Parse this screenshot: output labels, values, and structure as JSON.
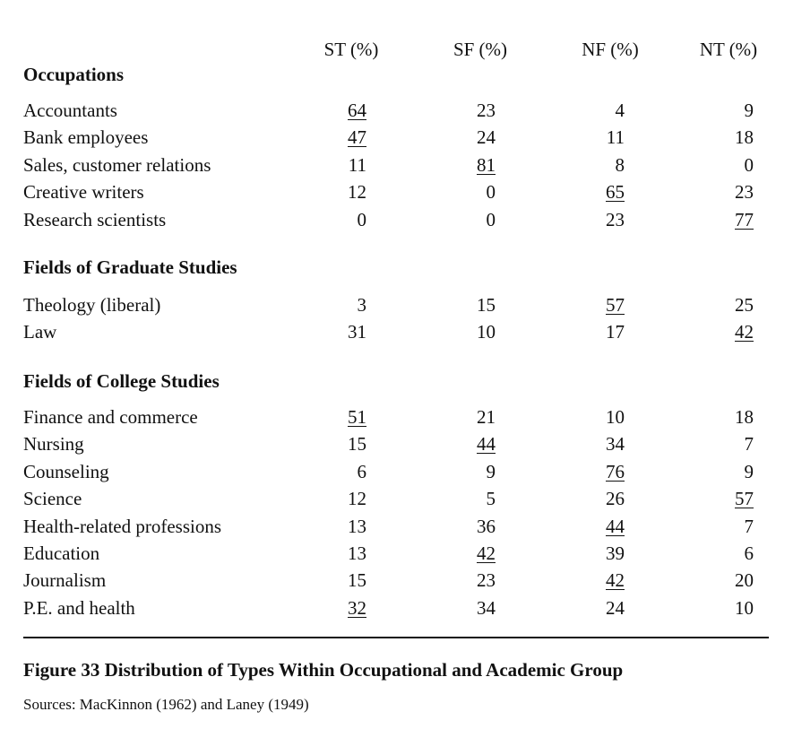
{
  "columns": [
    "ST (%)",
    "SF (%)",
    "NF (%)",
    "NT (%)"
  ],
  "sections": [
    {
      "title": "Occupations",
      "rows": [
        {
          "label": "Accountants",
          "values": [
            "64",
            "23",
            "4",
            "9"
          ],
          "underlined": 0
        },
        {
          "label": "Bank employees",
          "values": [
            "47",
            "24",
            "11",
            "18"
          ],
          "underlined": 0
        },
        {
          "label": "Sales, customer relations",
          "values": [
            "11",
            "81",
            "8",
            "0"
          ],
          "underlined": 1
        },
        {
          "label": "Creative writers",
          "values": [
            "12",
            "0",
            "65",
            "23"
          ],
          "underlined": 2
        },
        {
          "label": "Research scientists",
          "values": [
            "0",
            "0",
            "23",
            "77"
          ],
          "underlined": 3
        }
      ]
    },
    {
      "title": "Fields of Graduate Studies",
      "rows": [
        {
          "label": "Theology (liberal)",
          "values": [
            "3",
            "15",
            "57",
            "25"
          ],
          "underlined": 2
        },
        {
          "label": "Law",
          "values": [
            "31",
            "10",
            "17",
            "42"
          ],
          "underlined": 3
        }
      ]
    },
    {
      "title": "Fields of College Studies",
      "rows": [
        {
          "label": "Finance and commerce",
          "values": [
            "51",
            "21",
            "10",
            "18"
          ],
          "underlined": 0
        },
        {
          "label": "Nursing",
          "values": [
            "15",
            "44",
            "34",
            "7"
          ],
          "underlined": 1
        },
        {
          "label": "Counseling",
          "values": [
            "6",
            "9",
            "76",
            "9"
          ],
          "underlined": 2
        },
        {
          "label": "Science",
          "values": [
            "12",
            "5",
            "26",
            "57"
          ],
          "underlined": 3
        },
        {
          "label": "Health-related professions",
          "values": [
            "13",
            "36",
            "44",
            "7"
          ],
          "underlined": 2
        },
        {
          "label": "Education",
          "values": [
            "13",
            "42",
            "39",
            "6"
          ],
          "underlined": 1
        },
        {
          "label": "Journalism",
          "values": [
            "15",
            "23",
            "42",
            "20"
          ],
          "underlined": 2
        },
        {
          "label": "P.E. and health",
          "values": [
            "32",
            "34",
            "24",
            "10"
          ],
          "underlined": 0
        }
      ]
    }
  ],
  "caption": "Figure 33  Distribution of Types Within Occupational and Academic Group",
  "sources": "Sources:  MacKinnon (1962) and Laney (1949)"
}
